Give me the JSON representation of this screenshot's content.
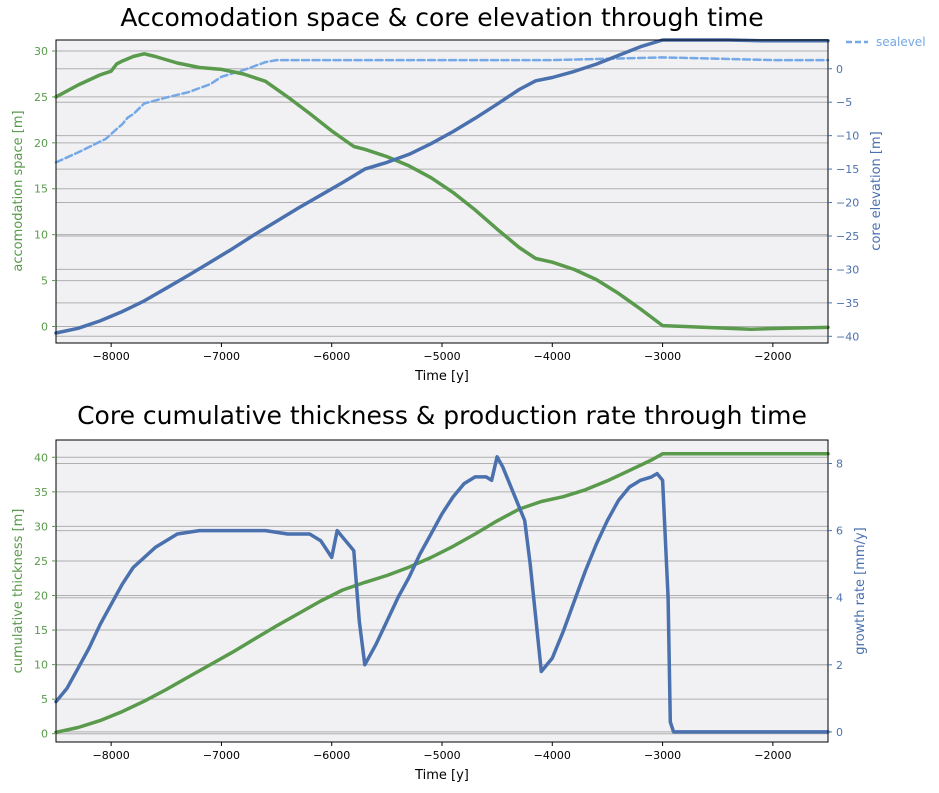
{
  "colors": {
    "green": "#5a9a4c",
    "blue": "#4a71ae",
    "lightblue": "#74a8e6",
    "plot_bg": "#f1f1f4"
  },
  "chart_data": [
    {
      "type": "line",
      "title": "Accomodation space & core elevation through time",
      "xlabel": "Time [y]",
      "ylabel_left": "accomodation space [m]",
      "ylabel_right": "core elevation [m]",
      "xlim": [
        -8500,
        -1500
      ],
      "ylim_left": [
        -1.8,
        31.2
      ],
      "ylim_right": [
        -41,
        4.3
      ],
      "xticks": [
        -8000,
        -7000,
        -6000,
        -5000,
        -4000,
        -3000,
        -2000
      ],
      "xtick_labels": [
        "−8000",
        "−7000",
        "−6000",
        "−5000",
        "−4000",
        "−3000",
        "−2000"
      ],
      "yticks_left": [
        0,
        5,
        10,
        15,
        20,
        25,
        30
      ],
      "ytick_labels_left": [
        "0",
        "5",
        "10",
        "15",
        "20",
        "25",
        "30"
      ],
      "yticks_right": [
        0,
        -5,
        -10,
        -15,
        -20,
        -25,
        -30,
        -35,
        -40
      ],
      "ytick_labels_right": [
        "0",
        "−5",
        "−10",
        "−15",
        "−20",
        "−25",
        "−30",
        "−35",
        "−40"
      ],
      "legend": {
        "entries": [
          "sealevel"
        ],
        "placement": "outside top-right"
      },
      "grid": "horizontal",
      "series": [
        {
          "axis": "left",
          "color": "green",
          "style": "solid",
          "x": [
            -8500,
            -8300,
            -8100,
            -8000,
            -7950,
            -7900,
            -7800,
            -7700,
            -7600,
            -7400,
            -7200,
            -7000,
            -6800,
            -6600,
            -6400,
            -6200,
            -6000,
            -5800,
            -5700,
            -5500,
            -5300,
            -5100,
            -4900,
            -4700,
            -4500,
            -4300,
            -4150,
            -4000,
            -3800,
            -3600,
            -3400,
            -3200,
            -3000,
            -2800,
            -2500,
            -2200,
            -1900,
            -1500
          ],
          "y": [
            25,
            26.3,
            27.4,
            27.8,
            28.6,
            28.9,
            29.4,
            29.7,
            29.4,
            28.7,
            28.2,
            28.0,
            27.5,
            26.7,
            25,
            23.2,
            21.3,
            19.6,
            19.3,
            18.5,
            17.5,
            16.2,
            14.6,
            12.7,
            10.6,
            8.6,
            7.4,
            7.0,
            6.2,
            5.1,
            3.6,
            1.9,
            0.1,
            0.0,
            -0.15,
            -0.3,
            -0.2,
            -0.1
          ]
        },
        {
          "axis": "right",
          "color": "blue",
          "style": "solid",
          "x": [
            -8500,
            -8300,
            -8100,
            -7900,
            -7700,
            -7500,
            -7300,
            -7100,
            -6900,
            -6700,
            -6500,
            -6300,
            -6100,
            -5900,
            -5700,
            -5500,
            -5300,
            -5100,
            -4900,
            -4700,
            -4500,
            -4300,
            -4150,
            -4000,
            -3800,
            -3600,
            -3400,
            -3200,
            -3000,
            -2950,
            -2700,
            -2400,
            -2100,
            -1800,
            -1500
          ],
          "y": [
            -39.5,
            -38.8,
            -37.7,
            -36.3,
            -34.7,
            -32.8,
            -30.9,
            -28.9,
            -26.9,
            -24.8,
            -22.8,
            -20.8,
            -18.9,
            -17.0,
            -15.0,
            -14.0,
            -12.8,
            -11.2,
            -9.4,
            -7.4,
            -5.3,
            -3.1,
            -1.8,
            -1.3,
            -0.4,
            0.7,
            2.0,
            3.3,
            4.3,
            4.3,
            4.3,
            4.3,
            4.2,
            4.2,
            4.2
          ]
        },
        {
          "name": "sealevel",
          "axis": "right",
          "color": "lightblue",
          "style": "dashed",
          "x": [
            -8500,
            -8300,
            -8150,
            -8050,
            -7950,
            -7900,
            -7850,
            -7800,
            -7700,
            -7500,
            -7300,
            -7100,
            -7000,
            -6800,
            -6600,
            -6500,
            -6000,
            -5000,
            -4000,
            -3000,
            -2500,
            -2000,
            -1500
          ],
          "y": [
            -14,
            -12.5,
            -11.3,
            -10.5,
            -9.0,
            -8.3,
            -7.3,
            -6.8,
            -5.2,
            -4.3,
            -3.5,
            -2.3,
            -1.2,
            -0.2,
            1.0,
            1.3,
            1.3,
            1.3,
            1.3,
            1.7,
            1.5,
            1.3,
            1.3
          ]
        }
      ]
    },
    {
      "type": "line",
      "title": "Core cumulative thickness & production rate through time",
      "xlabel": "Time [y]",
      "ylabel_left": "cumulative thickness [m]",
      "ylabel_right": "growth rate [mm/y]",
      "xlim": [
        -8500,
        -1500
      ],
      "ylim_left": [
        -1.2,
        42.5
      ],
      "ylim_right": [
        -0.3,
        8.7
      ],
      "xticks": [
        -8000,
        -7000,
        -6000,
        -5000,
        -4000,
        -3000,
        -2000
      ],
      "xtick_labels": [
        "−8000",
        "−7000",
        "−6000",
        "−5000",
        "−4000",
        "−3000",
        "−2000"
      ],
      "yticks_left": [
        0,
        5,
        10,
        15,
        20,
        25,
        30,
        35,
        40
      ],
      "ytick_labels_left": [
        "0",
        "5",
        "10",
        "15",
        "20",
        "25",
        "30",
        "35",
        "40"
      ],
      "yticks_right": [
        0,
        2,
        4,
        6,
        8
      ],
      "ytick_labels_right": [
        "0",
        "2",
        "4",
        "6",
        "8"
      ],
      "grid": "horizontal",
      "series": [
        {
          "axis": "left",
          "color": "green",
          "style": "solid",
          "x": [
            -8500,
            -8300,
            -8100,
            -7900,
            -7700,
            -7500,
            -7300,
            -7100,
            -6900,
            -6700,
            -6500,
            -6300,
            -6100,
            -5900,
            -5700,
            -5500,
            -5300,
            -5100,
            -4900,
            -4700,
            -4500,
            -4300,
            -4100,
            -3900,
            -3700,
            -3500,
            -3300,
            -3100,
            -3000,
            -2500,
            -2000,
            -1500
          ],
          "y": [
            0.2,
            0.9,
            1.9,
            3.2,
            4.7,
            6.4,
            8.2,
            10.0,
            11.8,
            13.7,
            15.6,
            17.4,
            19.2,
            20.8,
            21.9,
            22.9,
            24.1,
            25.5,
            27.1,
            28.9,
            30.8,
            32.5,
            33.6,
            34.3,
            35.3,
            36.6,
            38.1,
            39.6,
            40.5,
            40.5,
            40.5,
            40.5
          ]
        },
        {
          "axis": "right",
          "color": "blue",
          "style": "solid",
          "x": [
            -8500,
            -8400,
            -8300,
            -8200,
            -8100,
            -8000,
            -7900,
            -7800,
            -7600,
            -7400,
            -7200,
            -7000,
            -6800,
            -6600,
            -6400,
            -6200,
            -6100,
            -6000,
            -5950,
            -5900,
            -5850,
            -5800,
            -5750,
            -5700,
            -5600,
            -5500,
            -5400,
            -5300,
            -5200,
            -5100,
            -5000,
            -4900,
            -4800,
            -4700,
            -4600,
            -4550,
            -4500,
            -4450,
            -4350,
            -4250,
            -4200,
            -4100,
            -4000,
            -3900,
            -3800,
            -3700,
            -3600,
            -3500,
            -3400,
            -3300,
            -3200,
            -3100,
            -3050,
            -3000,
            -2950,
            -2930,
            -2900,
            -2800,
            -2500,
            -2000,
            -1500
          ],
          "y": [
            0.9,
            1.3,
            1.9,
            2.5,
            3.2,
            3.8,
            4.4,
            4.9,
            5.5,
            5.9,
            6.0,
            6.0,
            6.0,
            6.0,
            5.9,
            5.9,
            5.7,
            5.2,
            6.0,
            5.8,
            5.6,
            5.4,
            3.3,
            2.0,
            2.6,
            3.3,
            4.0,
            4.6,
            5.3,
            5.9,
            6.5,
            7.0,
            7.4,
            7.6,
            7.6,
            7.5,
            8.2,
            7.9,
            7.1,
            6.3,
            5.0,
            1.8,
            2.2,
            3.0,
            3.9,
            4.8,
            5.6,
            6.3,
            6.9,
            7.3,
            7.5,
            7.6,
            7.7,
            7.5,
            4.0,
            0.3,
            0.0,
            0.0,
            0.0,
            0.0,
            0.0
          ]
        }
      ]
    }
  ]
}
